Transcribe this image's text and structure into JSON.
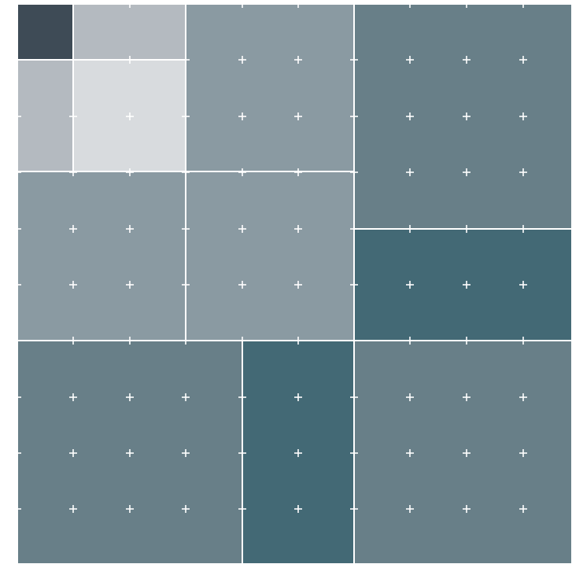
{
  "colors": {
    "background": "#ffffff",
    "divider": "#ffffff",
    "marker": "#ffffff",
    "tile_darkest": "#3e4b56",
    "tile_lightest": "#d8dbde",
    "tile_light": "#b4bac0",
    "tile_mid": "#8a9aa2",
    "tile_slate": "#687f88",
    "tile_teal": "#436975"
  },
  "icons": {
    "marker": "plus-icon"
  }
}
